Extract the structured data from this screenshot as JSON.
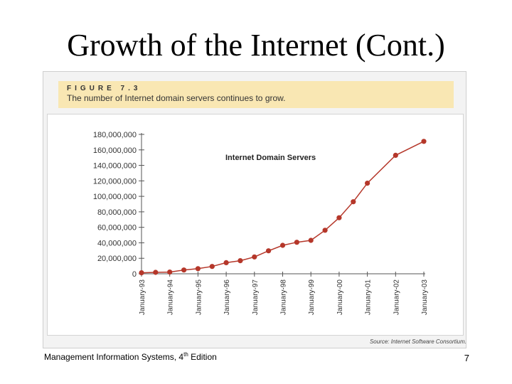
{
  "slide": {
    "title": "Growth of the Internet (Cont.)",
    "footer_text": "Management Information Systems, 4",
    "footer_superscript": "th",
    "footer_suffix": " Edition",
    "page_number": "7"
  },
  "figure": {
    "label": "FIGURE 7.3",
    "caption": "The number of Internet domain servers continues to grow.",
    "source": "Source: Internet Software Consortium.",
    "header_color": "#f9e7b3",
    "line_color": "#b5372a"
  },
  "chart_data": {
    "type": "line",
    "title": "Internet Domain Servers",
    "xlabel": "",
    "ylabel": "",
    "ylim": [
      0,
      180000000
    ],
    "yticks": [
      "0",
      "20,000,000",
      "40,000,000",
      "60,000,000",
      "80,000,000",
      "100,000,000",
      "120,000,000",
      "140,000,000",
      "160,000,000",
      "180,000,000"
    ],
    "ytick_values": [
      0,
      20000000,
      40000000,
      60000000,
      80000000,
      100000000,
      120000000,
      140000000,
      160000000,
      180000000
    ],
    "xticks": [
      "January-93",
      "January-94",
      "January-95",
      "January-96",
      "January-97",
      "January-98",
      "January-99",
      "January-00",
      "January-01",
      "January-02",
      "January-03"
    ],
    "x": [
      0,
      0.5,
      1,
      1.5,
      2,
      2.5,
      3,
      3.5,
      4,
      4.5,
      5,
      5.5,
      6,
      6.5,
      7,
      7.5,
      8,
      9,
      10
    ],
    "values": [
      1300000,
      1800000,
      2200000,
      4900000,
      6600000,
      9500000,
      14300000,
      16900000,
      21800000,
      29700000,
      36700000,
      40700000,
      43200000,
      56200000,
      72400000,
      93000000,
      117000000,
      153000000,
      171000000
    ]
  }
}
